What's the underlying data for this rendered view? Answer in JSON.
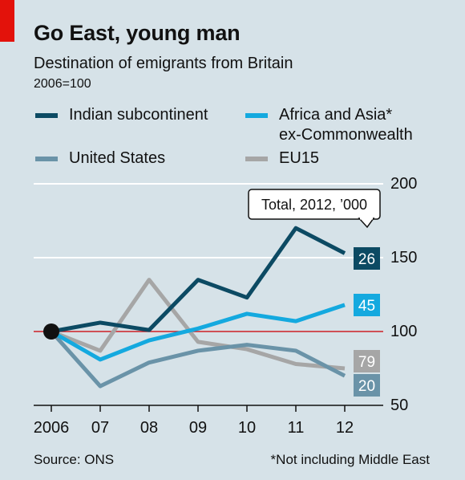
{
  "header": {
    "title": "Go East, young man",
    "subtitle": "Destination of emigrants from Britain",
    "index_note": "2006=100"
  },
  "colors": {
    "background": "#d6e2e8",
    "brand_red": "#e3120b",
    "indian": "#0c4a63",
    "africa_asia": "#14a9df",
    "us": "#6a93a8",
    "eu15": "#a6a6a6",
    "reference_line": "#c0161e"
  },
  "legend": [
    {
      "label": "Indian subcontinent",
      "color": "#0c4a63"
    },
    {
      "label": "Africa and Asia*\nex-Commonwealth",
      "color": "#14a9df"
    },
    {
      "label": "United States",
      "color": "#6a93a8"
    },
    {
      "label": "EU15",
      "color": "#a6a6a6"
    }
  ],
  "callout": {
    "label": "Total, 2012, ’000"
  },
  "footer": {
    "source": "Source: ONS",
    "note": "*Not including Middle East"
  },
  "chart_data": {
    "type": "line",
    "title": "Go East, young man",
    "subtitle": "Destination of emigrants from Britain",
    "ylabel": "2006=100",
    "categories": [
      "2006",
      "07",
      "08",
      "09",
      "10",
      "11",
      "12"
    ],
    "ylim": [
      50,
      200
    ],
    "yticks": [
      50,
      100,
      150,
      200
    ],
    "grid": true,
    "axis_side": "right",
    "reference_value": 100,
    "series": [
      {
        "name": "Indian subcontinent",
        "color": "#0c4a63",
        "values": [
          100,
          106,
          101,
          135,
          123,
          170,
          153
        ],
        "end_label": "26"
      },
      {
        "name": "Africa and Asia* ex-Commonwealth",
        "color": "#14a9df",
        "values": [
          100,
          81,
          94,
          102,
          112,
          107,
          118
        ],
        "end_label": "45"
      },
      {
        "name": "United States",
        "color": "#6a93a8",
        "values": [
          100,
          63,
          79,
          87,
          91,
          87,
          70
        ],
        "end_label": "20"
      },
      {
        "name": "EU15",
        "color": "#a6a6a6",
        "values": [
          100,
          87,
          135,
          93,
          88,
          78,
          75
        ],
        "end_label": "79"
      }
    ]
  }
}
